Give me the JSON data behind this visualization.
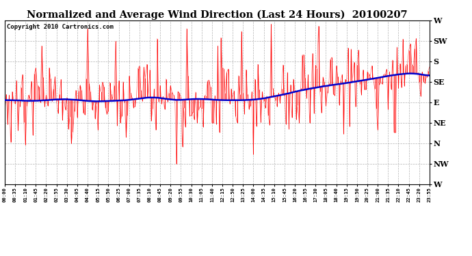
{
  "title": "Normalized and Average Wind Direction (Last 24 Hours)  20100207",
  "copyright": "Copyright 2010 Cartronics.com",
  "ytick_labels": [
    "W",
    "NW",
    "N",
    "NE",
    "E",
    "SE",
    "S",
    "SW",
    "W"
  ],
  "ytick_values": [
    0,
    45,
    90,
    135,
    180,
    225,
    270,
    315,
    360
  ],
  "ylim": [
    0,
    360
  ],
  "background_color": "#ffffff",
  "plot_bg_color": "#ffffff",
  "grid_color": "#aaaaaa",
  "red_color": "#ff0000",
  "blue_color": "#0000cc",
  "title_fontsize": 10.5,
  "copyright_fontsize": 6.5,
  "figwidth": 6.9,
  "figheight": 3.75,
  "dpi": 100
}
